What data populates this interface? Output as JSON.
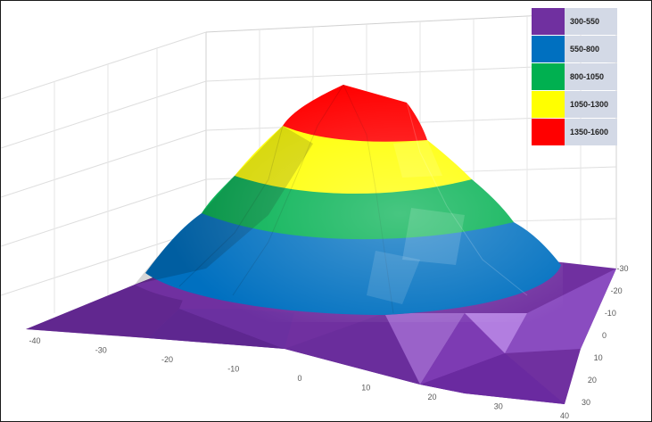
{
  "chart_data": {
    "type": "surface",
    "title": "",
    "x_ticks": [
      "-40",
      "-30",
      "-20",
      "-10",
      "0",
      "10",
      "20",
      "30",
      "40"
    ],
    "y_ticks": [
      "-30",
      "-20",
      "-10",
      "0",
      "10",
      "20",
      "30"
    ],
    "zlim": [
      300,
      1600
    ],
    "grid": true,
    "legend_position": "top-right",
    "bands": [
      {
        "label": "300-550",
        "min": 300,
        "max": 550,
        "color": "#7030a0"
      },
      {
        "label": "550-800",
        "min": 550,
        "max": 800,
        "color": "#0070c0"
      },
      {
        "label": "800-1050",
        "min": 800,
        "max": 1050,
        "color": "#00b050"
      },
      {
        "label": "1050-1300",
        "min": 1050,
        "max": 1300,
        "color": "#ffff00"
      },
      {
        "label": "1350-1600",
        "min": 1350,
        "max": 1600,
        "color": "#ff0000"
      }
    ]
  }
}
